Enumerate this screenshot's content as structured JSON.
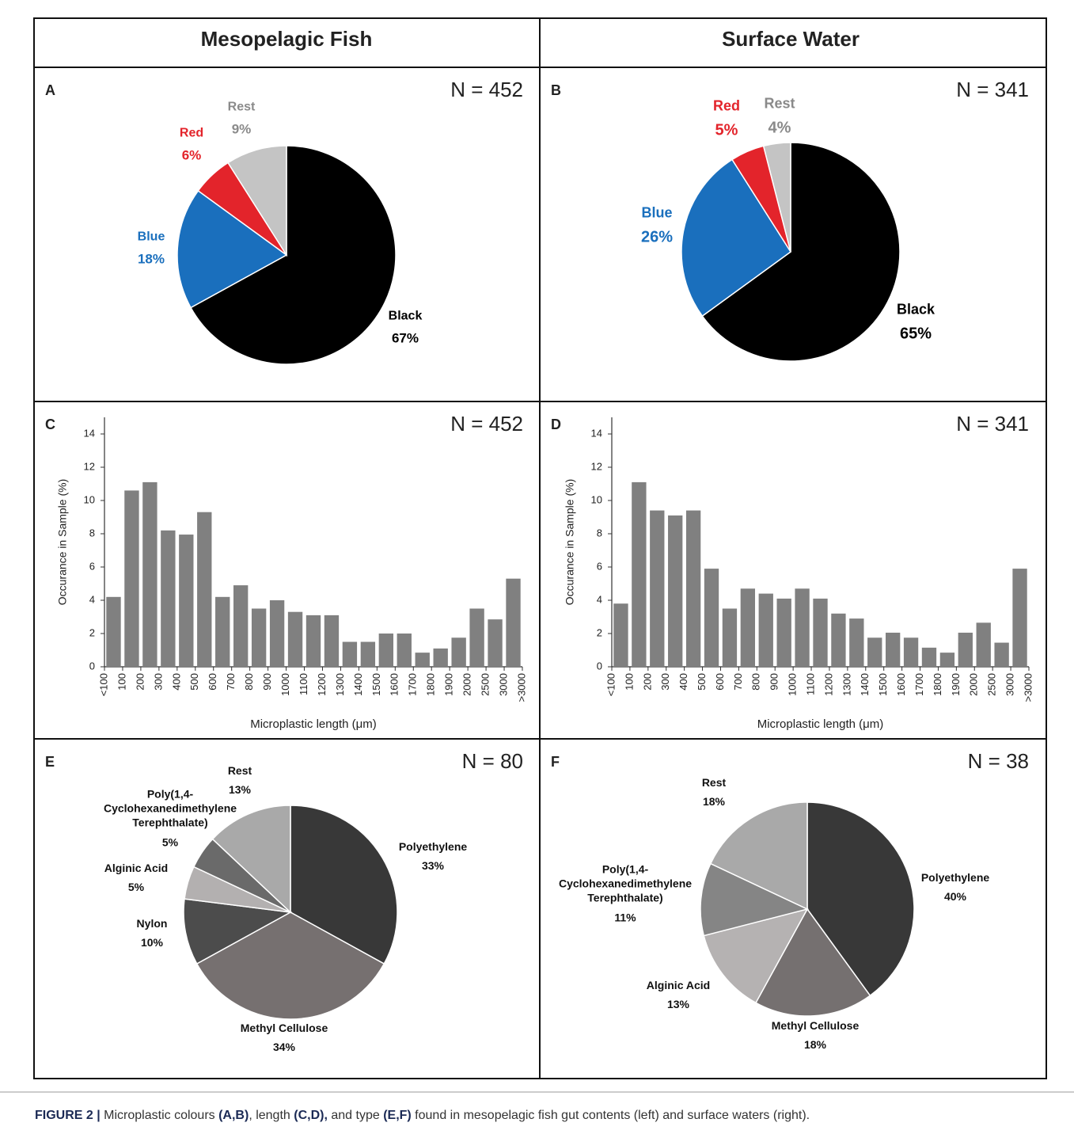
{
  "columns": [
    "Mesopelagic Fish",
    "Surface Water"
  ],
  "caption": [
    "FIGURE 2 |",
    " Microplastic colours ",
    "(A,B)",
    ", length ",
    "(C,D),",
    " and type ",
    "(E,F)",
    " found in mesopelagic fish gut contents (left) and surface waters (right)."
  ],
  "chart_data": [
    {
      "type": "pie",
      "panel": "A",
      "annotation": "N = 452",
      "categories": [
        "Black",
        "Blue",
        "Red",
        "Rest"
      ],
      "values": [
        67,
        18,
        6,
        9
      ],
      "value_labels": [
        "67%",
        "18%",
        "6%",
        "9%"
      ],
      "colors": [
        "#000000",
        "#1a6fbd",
        "#e3242b",
        "#c4c4c4"
      ],
      "label_colors": [
        "#000000",
        "#1a6fbd",
        "#e3242b",
        "#8a8a8a"
      ]
    },
    {
      "type": "pie",
      "panel": "B",
      "annotation": "N = 341",
      "categories": [
        "Black",
        "Blue",
        "Red",
        "Rest"
      ],
      "values": [
        65,
        26,
        5,
        4
      ],
      "value_labels": [
        "65%",
        "26%",
        "5%",
        "4%"
      ],
      "colors": [
        "#000000",
        "#1a6fbd",
        "#e3242b",
        "#c4c4c4"
      ],
      "label_colors": [
        "#000000",
        "#1a6fbd",
        "#e3242b",
        "#8a8a8a"
      ]
    },
    {
      "type": "histogram",
      "panel": "C",
      "annotation": "N = 452",
      "bins": [
        "<100",
        "100",
        "200",
        "300",
        "400",
        "500",
        "600",
        "700",
        "800",
        "900",
        "1000",
        "1100",
        "1200",
        "1300",
        "1400",
        "1500",
        "1600",
        "1700",
        "1800",
        "1900",
        "2000",
        "2500",
        "3000",
        ">3000"
      ],
      "values": [
        4.2,
        10.6,
        11.1,
        8.2,
        7.95,
        9.3,
        4.2,
        4.9,
        3.5,
        4.0,
        3.3,
        3.1,
        3.1,
        1.5,
        1.5,
        2.0,
        2.0,
        0.85,
        1.1,
        1.75,
        3.5,
        2.85,
        5.3
      ],
      "color": "#808080",
      "ylim": [
        0,
        15
      ],
      "yticks": [
        0,
        2,
        4,
        6,
        8,
        10,
        12,
        14
      ],
      "xlabel": "Microplastic length (μm)",
      "ylabel": "Occurance in Sample (%)"
    },
    {
      "type": "histogram",
      "panel": "D",
      "annotation": "N = 341",
      "bins": [
        "<100",
        "100",
        "200",
        "300",
        "400",
        "500",
        "600",
        "700",
        "800",
        "900",
        "1000",
        "1100",
        "1200",
        "1300",
        "1400",
        "1500",
        "1600",
        "1700",
        "1800",
        "1900",
        "2000",
        "2500",
        "3000",
        ">3000"
      ],
      "values": [
        3.8,
        11.1,
        9.4,
        9.1,
        9.4,
        5.9,
        3.5,
        4.7,
        4.4,
        4.1,
        4.7,
        4.1,
        3.2,
        2.9,
        1.75,
        2.05,
        1.75,
        1.15,
        0.85,
        2.05,
        2.65,
        1.45,
        5.9
      ],
      "color": "#808080",
      "ylim": [
        0,
        15
      ],
      "yticks": [
        0,
        2,
        4,
        6,
        8,
        10,
        12,
        14
      ],
      "xlabel": "Microplastic length (μm)",
      "ylabel": "Occurance in Sample (%)"
    },
    {
      "type": "pie",
      "panel": "E",
      "annotation": "N = 80",
      "categories": [
        "Polyethylene",
        "Methyl Cellulose",
        "Nylon",
        "Alginic Acid",
        "Poly(1,4-\nCyclohexanedimethylene\nTerephthalate)",
        "Rest"
      ],
      "values": [
        33,
        34,
        10,
        5,
        5,
        13
      ],
      "value_labels": [
        "33%",
        "34%",
        "10%",
        "5%",
        "5%",
        "13%"
      ],
      "colors": [
        "#383838",
        "#767070",
        "#4c4c4c",
        "#b3b0b0",
        "#6a6a6a",
        "#a9a9a9"
      ]
    },
    {
      "type": "pie",
      "panel": "F",
      "annotation": "N = 38",
      "categories": [
        "Polyethylene",
        "Methyl Cellulose",
        "Alginic Acid",
        "Poly(1,4-\nCyclohexanedimethylene\nTerephthalate)",
        "Rest"
      ],
      "values": [
        40,
        18,
        13,
        11,
        18
      ],
      "value_labels": [
        "40%",
        "18%",
        "13%",
        "11%",
        "18%"
      ],
      "colors": [
        "#383838",
        "#757070",
        "#b5b2b2",
        "#858585",
        "#a9a9a9"
      ]
    }
  ]
}
